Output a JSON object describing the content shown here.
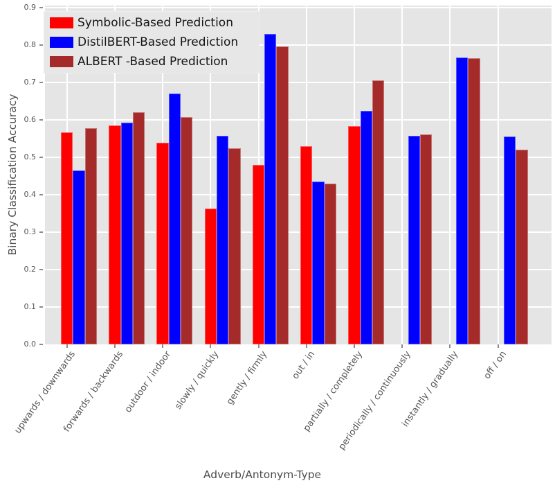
{
  "figure": {
    "background": "#ffffff",
    "plot_background": "#e5e5e5",
    "gridline_color": "#ffffff",
    "tick_label_color": "#555555",
    "axis_title_color": "#4c4c4c"
  },
  "chart_data": {
    "type": "bar",
    "title": "",
    "xlabel": "Adverb/Antonym-Type",
    "ylabel": "Binary Classification Accuracy",
    "ylim": [
      0.0,
      0.9
    ],
    "ytick_step": 0.1,
    "grid": true,
    "legend_position": "upper-left",
    "categories": [
      "upwards / downwards",
      "forwards / backwards",
      "outdoor / indoor",
      "slowly / quickly",
      "gently / firmly",
      "out / in",
      "partially / completely",
      "periodically / continuously",
      "instantly / gradually",
      "off / on"
    ],
    "series": [
      {
        "name": "Symbolic-Based Prediction",
        "color": "#ff0000",
        "values": [
          0.567,
          0.585,
          0.538,
          0.363,
          0.479,
          0.529,
          0.583,
          null,
          null,
          null
        ]
      },
      {
        "name": "DistilBERT-Based Prediction",
        "color": "#0000ff",
        "values": [
          0.464,
          0.593,
          0.671,
          0.557,
          0.83,
          0.436,
          0.624,
          0.558,
          0.766,
          0.556
        ]
      },
      {
        "name": "ALBERT -Based Prediction",
        "color": "#a52a2a",
        "values": [
          0.578,
          0.621,
          0.607,
          0.524,
          0.796,
          0.429,
          0.706,
          0.562,
          0.765,
          0.52
        ]
      }
    ]
  }
}
